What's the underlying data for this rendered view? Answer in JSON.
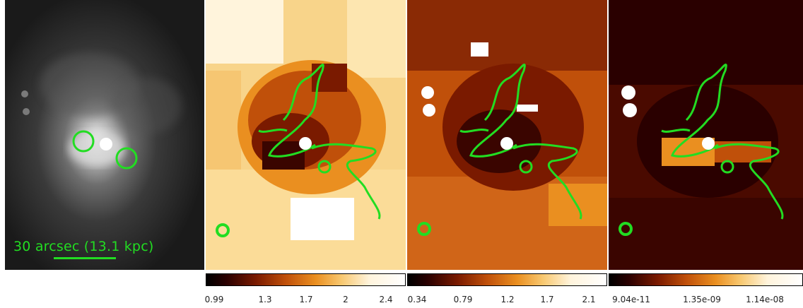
{
  "scale_bar": {
    "label": "30 arcsec (13.1 kpc)"
  },
  "colorbars": [
    {
      "ticks": [
        "0.99",
        "1.3",
        "1.7",
        "2",
        "2.4"
      ]
    },
    {
      "ticks": [
        "0.34",
        "0.79",
        "1.2",
        "1.7",
        "2.1"
      ]
    },
    {
      "ticks": [
        "9.04e-11",
        "1.35e-09",
        "1.14e-08"
      ]
    }
  ],
  "colors": {
    "contour": "#22dd22",
    "colormap": [
      "#000000",
      "#7a1a00",
      "#c0500a",
      "#ea8f20",
      "#f8c870",
      "#ffffff"
    ]
  }
}
